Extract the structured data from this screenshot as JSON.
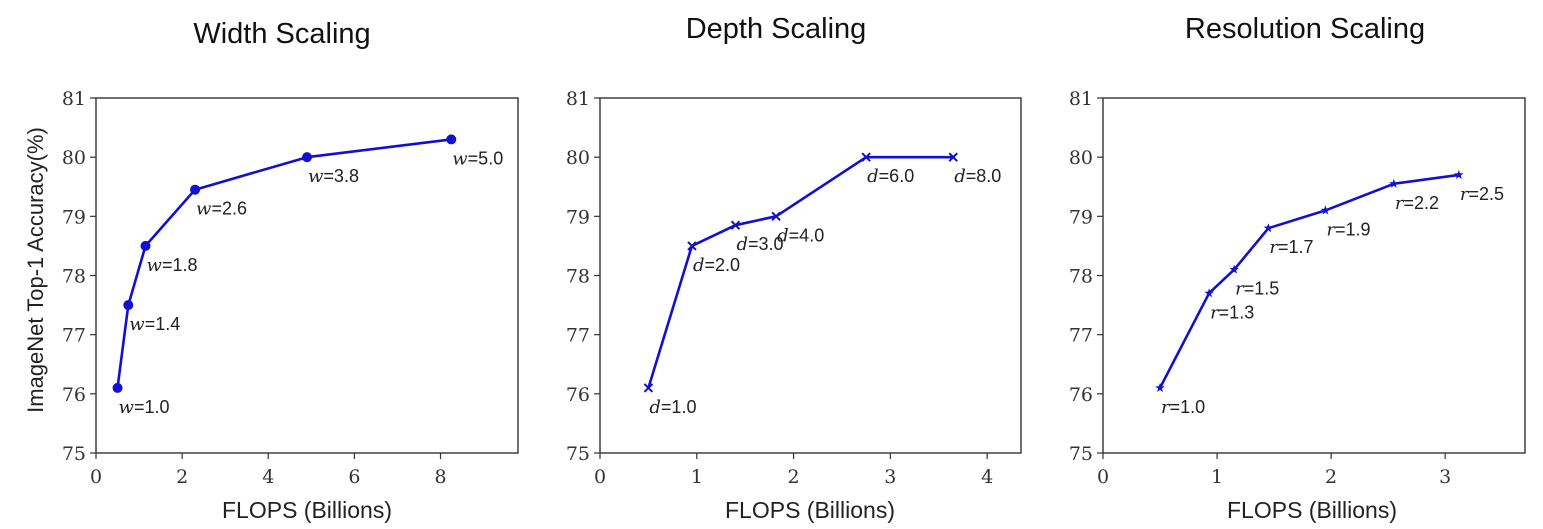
{
  "ylabel": "ImageNet Top-1 Accuracy(%)",
  "series_color": "#1010d0",
  "chart_data": [
    {
      "type": "line",
      "title": "Width Scaling",
      "xlabel": "FLOPS (Billions)",
      "xlim": [
        0,
        9.8
      ],
      "ylim": [
        75,
        81
      ],
      "xticks": [
        0,
        2,
        4,
        6,
        8
      ],
      "yticks": [
        75,
        76,
        77,
        78,
        79,
        80,
        81
      ],
      "marker": "circle",
      "var": "w",
      "points": [
        {
          "x": 0.5,
          "y": 76.1,
          "label": "1.0",
          "pos": "below"
        },
        {
          "x": 0.75,
          "y": 77.5,
          "label": "1.4",
          "pos": "below"
        },
        {
          "x": 1.15,
          "y": 78.5,
          "label": "1.8",
          "pos": "below"
        },
        {
          "x": 2.3,
          "y": 79.45,
          "label": "2.6",
          "pos": "below"
        },
        {
          "x": 4.9,
          "y": 80.0,
          "label": "3.8",
          "pos": "below"
        },
        {
          "x": 8.25,
          "y": 80.3,
          "label": "5.0",
          "pos": "below"
        }
      ]
    },
    {
      "type": "line",
      "title": "Depth Scaling",
      "xlabel": "FLOPS (Billions)",
      "xlim": [
        0,
        4.35
      ],
      "ylim": [
        75,
        81
      ],
      "xticks": [
        0,
        1,
        2,
        3,
        4
      ],
      "yticks": [
        75,
        76,
        77,
        78,
        79,
        80,
        81
      ],
      "marker": "x",
      "var": "d",
      "points": [
        {
          "x": 0.5,
          "y": 76.1,
          "label": "1.0",
          "pos": "below"
        },
        {
          "x": 0.95,
          "y": 78.5,
          "label": "2.0",
          "pos": "below"
        },
        {
          "x": 1.4,
          "y": 78.85,
          "label": "3.0",
          "pos": "below"
        },
        {
          "x": 1.82,
          "y": 79.0,
          "label": "4.0",
          "pos": "below"
        },
        {
          "x": 2.75,
          "y": 80.0,
          "label": "6.0",
          "pos": "below"
        },
        {
          "x": 3.65,
          "y": 80.0,
          "label": "8.0",
          "pos": "below"
        }
      ]
    },
    {
      "type": "line",
      "title": "Resolution Scaling",
      "xlabel": "FLOPS (Billions)",
      "xlim": [
        0,
        3.7
      ],
      "ylim": [
        75,
        81
      ],
      "xticks": [
        0,
        1,
        2,
        3
      ],
      "yticks": [
        75,
        76,
        77,
        78,
        79,
        80,
        81
      ],
      "marker": "star",
      "var": "r",
      "points": [
        {
          "x": 0.5,
          "y": 76.1,
          "label": "1.0",
          "pos": "below"
        },
        {
          "x": 0.93,
          "y": 77.7,
          "label": "1.3",
          "pos": "below"
        },
        {
          "x": 1.15,
          "y": 78.1,
          "label": "1.5",
          "pos": "below"
        },
        {
          "x": 1.45,
          "y": 78.8,
          "label": "1.7",
          "pos": "below"
        },
        {
          "x": 1.95,
          "y": 79.1,
          "label": "1.9",
          "pos": "below"
        },
        {
          "x": 2.55,
          "y": 79.55,
          "label": "2.2",
          "pos": "below"
        },
        {
          "x": 3.12,
          "y": 79.7,
          "label": "2.5",
          "pos": "below"
        }
      ]
    }
  ]
}
